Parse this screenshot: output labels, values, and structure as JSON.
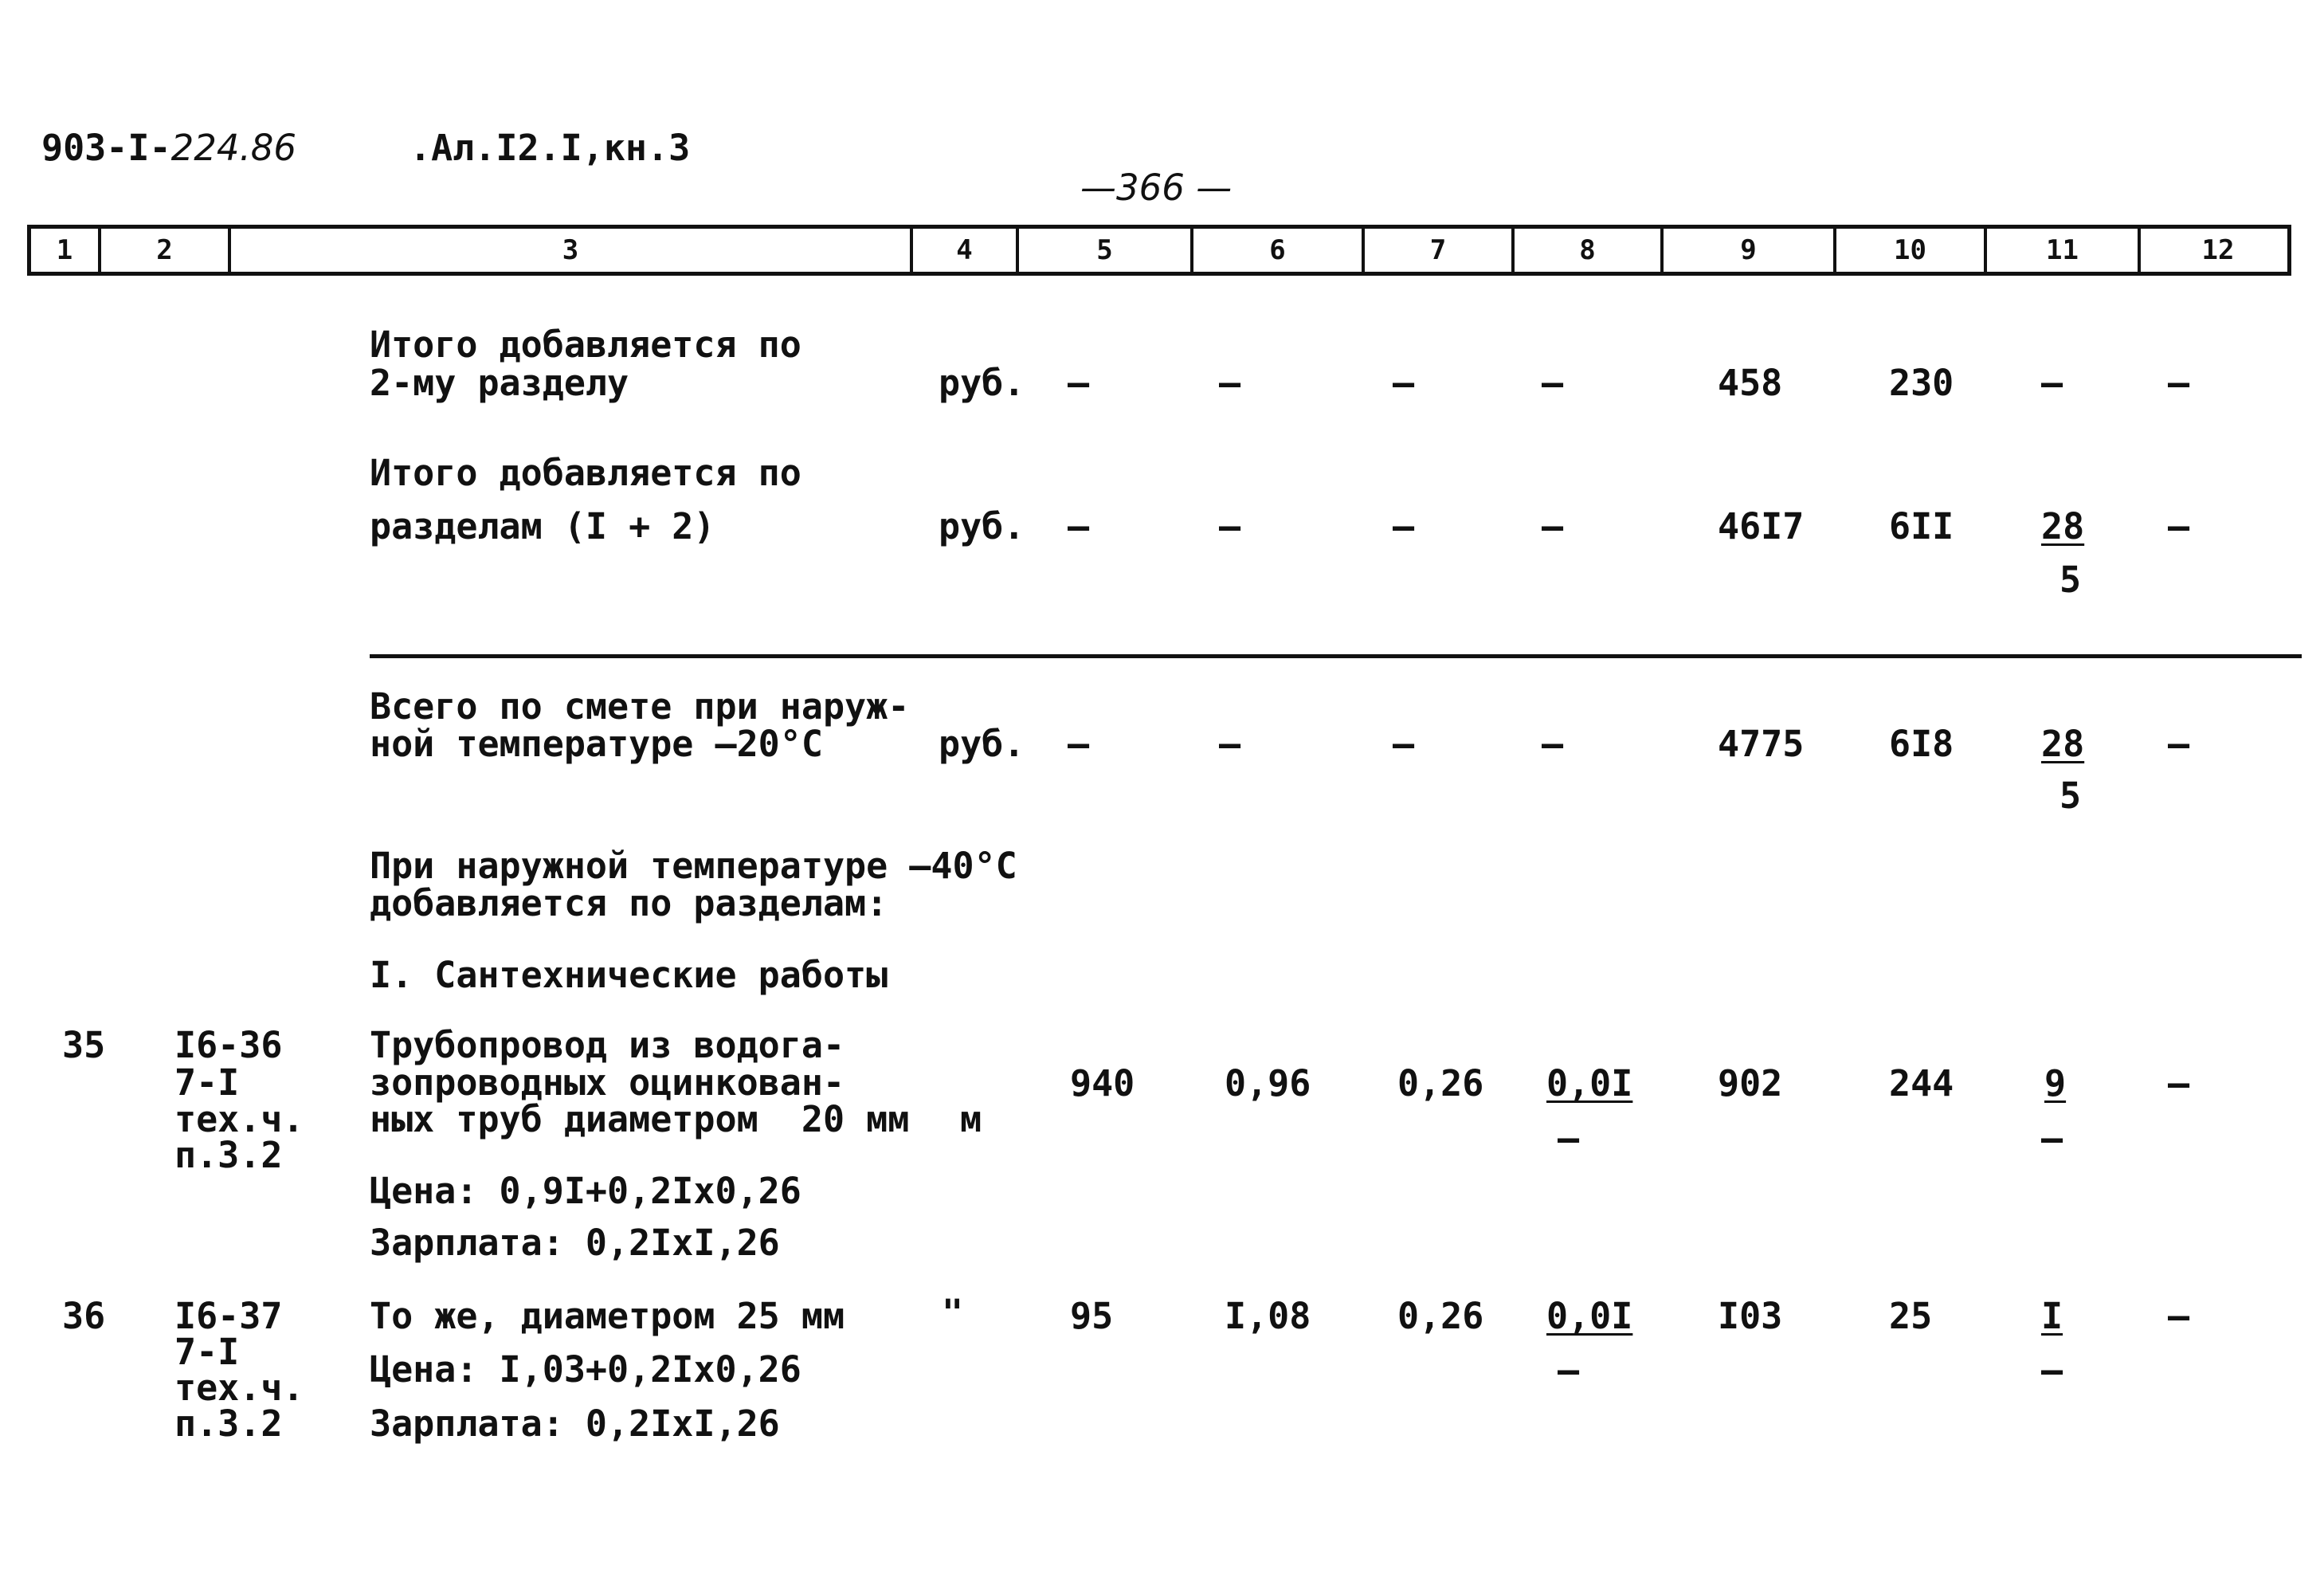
{
  "header": {
    "doc_code_prefix": "903-I-",
    "doc_code_hand": "224.86",
    "album": ".Ал.I2.I,кн.3",
    "page_number": "—366 —"
  },
  "column_numbers": [
    "1",
    "2",
    "3",
    "4",
    "5",
    "6",
    "7",
    "8",
    "9",
    "10",
    "11",
    "12"
  ],
  "totals": [
    {
      "text_lines": [
        "Итого добавляется по",
        "2-му разделу"
      ],
      "unit": "руб.",
      "c5": "–",
      "c6": "–",
      "c7": "–",
      "c8": "–",
      "c9": "458",
      "c10": "230",
      "c11": "–",
      "c12": "–"
    },
    {
      "text_lines": [
        "Итого добавляется по",
        "разделам (I + 2)"
      ],
      "unit": "руб.",
      "c5": "–",
      "c6": "–",
      "c7": "–",
      "c8": "–",
      "c9": "46I7",
      "c10": "6II",
      "c11_top": "28",
      "c11_bottom": "5",
      "c12": "–"
    },
    {
      "text_lines": [
        "Всего по смете при наруж-",
        "ной температуре –20°C"
      ],
      "unit": "руб.",
      "c5": "–",
      "c6": "–",
      "c7": "–",
      "c8": "–",
      "c9": "4775",
      "c10": "6I8",
      "c11_top": "28",
      "c11_bottom": "5",
      "c12": "–"
    }
  ],
  "note_lines": [
    "При наружной температуре –40°C",
    "добавляется по разделам:"
  ],
  "section_title": "I. Сантехнические работы",
  "items": [
    {
      "num": "35",
      "ref_lines": [
        "I6-36",
        "7-I",
        "тех.ч.",
        "п.3.2"
      ],
      "text_lines": [
        "Трубопровод из водога-",
        "зопроводных оцинкован-",
        "ных труб диаметром  20 мм"
      ],
      "unit": "м",
      "c5": "940",
      "c6": "0,96",
      "c7": "0,26",
      "c8_top": "0,0I",
      "c8_bottom": "–",
      "c9": "902",
      "c10": "244",
      "c11_top": "9",
      "c11_bottom": "–",
      "c12": "–",
      "price": "Цена: 0,9I+0,2Ix0,26",
      "salary": "Зарплата: 0,2IxI,26"
    },
    {
      "num": "36",
      "ref_lines": [
        "I6-37",
        "7-I",
        "тех.ч.",
        "п.3.2"
      ],
      "text_lines": [
        "То же, диаметром 25 мм"
      ],
      "unit": "\"",
      "c5": "95",
      "c6": "I,08",
      "c7": "0,26",
      "c8_top": "0,0I",
      "c8_bottom": "–",
      "c9": "I03",
      "c10": "25",
      "c11_top": "I",
      "c11_bottom": "–",
      "c12": "–",
      "price": "Цена: I,03+0,2Ix0,26",
      "salary": "Зарплата: 0,2IxI,26"
    }
  ]
}
